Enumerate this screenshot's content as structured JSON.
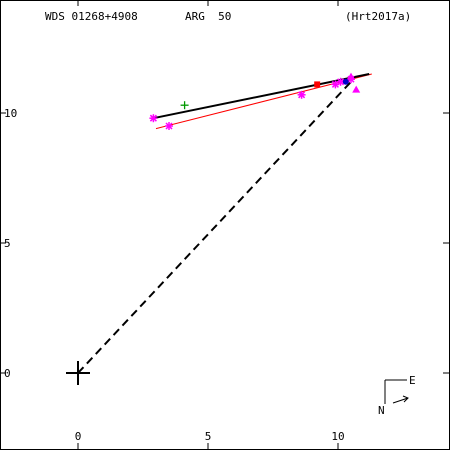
{
  "header": {
    "system": "WDS 01268+4908",
    "discoverer": "ARG  50",
    "reference": "(Hrt2017a)"
  },
  "compass": {
    "east": "E",
    "north": "N"
  },
  "colors": {
    "fit_line": "#000000",
    "red_line": "#ff0000",
    "dashed_line": "#000000",
    "magenta": "#ff00ff",
    "green": "#009900",
    "red": "#ff0000",
    "blue": "#0000cc"
  },
  "chart_data": {
    "type": "scatter",
    "xlim": [
      -3,
      14
    ],
    "ylim": [
      -3,
      14.2
    ],
    "x_ticks": [
      0,
      5,
      10
    ],
    "x_tick_labels": [
      "0",
      "5",
      "10"
    ],
    "y_ticks": [
      10,
      5,
      0
    ],
    "y_tick_labels": [
      "10",
      "5",
      "0"
    ],
    "grid": false,
    "primary": [
      0,
      0
    ],
    "orbit_fit": [
      [
        2.9,
        9.8
      ],
      [
        11.2,
        11.5
      ]
    ],
    "linear_fit": [
      [
        3.0,
        9.4
      ],
      [
        11.3,
        11.5
      ]
    ],
    "dashed_line": [
      [
        0,
        0
      ],
      [
        10.5,
        11.2
      ]
    ],
    "series": [
      {
        "marker": "asterisk",
        "color": "magenta",
        "points": [
          [
            2.9,
            9.8
          ],
          [
            3.5,
            9.5
          ],
          [
            8.6,
            10.7
          ],
          [
            9.9,
            11.1
          ],
          [
            10.1,
            11.2
          ],
          [
            10.5,
            11.3
          ]
        ]
      },
      {
        "marker": "plus",
        "color": "green",
        "points": [
          [
            4.1,
            10.3
          ]
        ]
      },
      {
        "marker": "square",
        "color": "red",
        "points": [
          [
            9.2,
            11.1
          ]
        ]
      },
      {
        "marker": "triangle",
        "color": "magenta",
        "points": [
          [
            10.5,
            11.4
          ],
          [
            10.7,
            10.9
          ]
        ]
      },
      {
        "marker": "dot",
        "color": "blue",
        "points": [
          [
            10.3,
            11.2
          ]
        ]
      }
    ]
  }
}
